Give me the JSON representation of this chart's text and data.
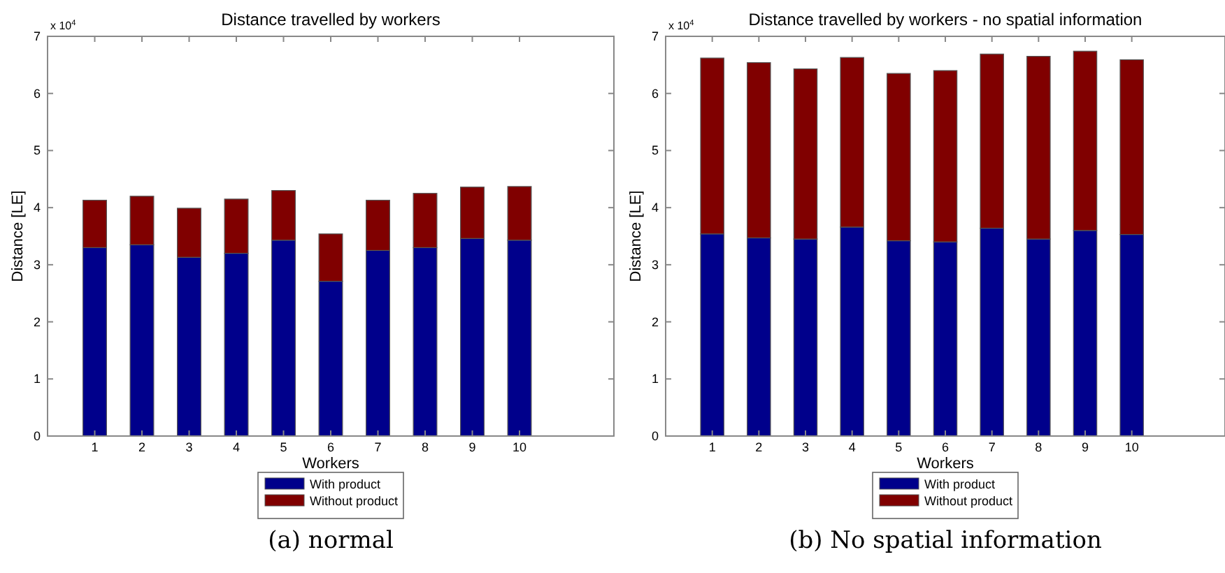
{
  "chart_data": [
    {
      "type": "bar",
      "title": "Distance travelled by workers",
      "xlabel": "Workers",
      "ylabel": "Distance [LE]",
      "stacked": true,
      "x": [
        1,
        2,
        3,
        4,
        5,
        6,
        7,
        8,
        9,
        10
      ],
      "xlim": [
        0,
        12
      ],
      "xticks": [
        1,
        2,
        3,
        4,
        5,
        6,
        7,
        8,
        9,
        10
      ],
      "ylim": [
        0,
        7
      ],
      "yticks": [
        0,
        1,
        2,
        3,
        4,
        5,
        6,
        7
      ],
      "grid": false,
      "legend": "bottom",
      "annotations": [
        "x 10$^{4}$",
        "(a) normal"
      ],
      "series": [
        {
          "name": "With product",
          "color": "#00008b",
          "values": [
            3.3,
            3.35,
            3.13,
            3.2,
            3.43,
            2.71,
            3.25,
            3.3,
            3.46,
            3.43
          ]
        },
        {
          "name": "Without product",
          "color": "#800000",
          "values": [
            0.83,
            0.85,
            0.86,
            0.95,
            0.87,
            0.83,
            0.88,
            0.95,
            0.9,
            0.94
          ]
        }
      ]
    },
    {
      "type": "bar",
      "title": "Distance travelled by workers - no spatial information",
      "xlabel": "Workers",
      "ylabel": "Distance [LE]",
      "stacked": true,
      "x": [
        1,
        2,
        3,
        4,
        5,
        6,
        7,
        8,
        9,
        10
      ],
      "xlim": [
        0,
        12
      ],
      "xticks": [
        1,
        2,
        3,
        4,
        5,
        6,
        7,
        8,
        9,
        10
      ],
      "ylim": [
        0,
        7
      ],
      "yticks": [
        0,
        1,
        2,
        3,
        4,
        5,
        6,
        7
      ],
      "grid": false,
      "legend": "bottom",
      "annotations": [
        "x 10$^{4}$",
        "(b) No spatial information"
      ],
      "series": [
        {
          "name": "With product",
          "color": "#00008b",
          "values": [
            3.54,
            3.47,
            3.45,
            3.66,
            3.42,
            3.4,
            3.64,
            3.45,
            3.6,
            3.53
          ]
        },
        {
          "name": "Without product",
          "color": "#800000",
          "values": [
            3.08,
            3.07,
            2.98,
            2.97,
            2.93,
            3.0,
            3.05,
            3.2,
            3.14,
            3.06
          ]
        }
      ]
    }
  ]
}
